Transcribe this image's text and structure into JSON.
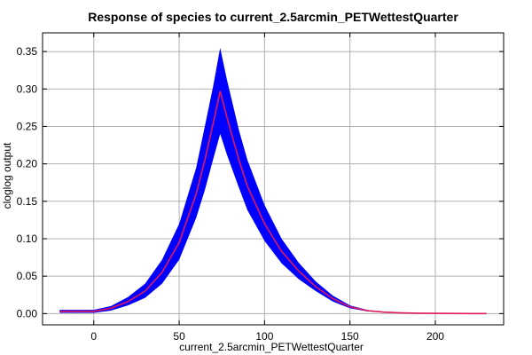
{
  "chart_data": {
    "type": "line",
    "title": "Response of species to current_2.5arcmin_PETWettestQuarter",
    "xlabel": "current_2.5arcmin_PETWettestQuarter",
    "ylabel": "cloglog output",
    "xlim": [
      -30,
      240
    ],
    "ylim": [
      -0.015,
      0.375
    ],
    "x_ticks": [
      0,
      50,
      100,
      150,
      200
    ],
    "x_tick_labels": [
      "0",
      "50",
      "100",
      "150",
      "200"
    ],
    "y_ticks": [
      0.0,
      0.05,
      0.1,
      0.15,
      0.2,
      0.25,
      0.3,
      0.35
    ],
    "y_tick_labels": [
      "0.00",
      "0.05",
      "0.10",
      "0.15",
      "0.20",
      "0.25",
      "0.30",
      "0.35"
    ],
    "grid": true,
    "series": [
      {
        "role": "mean",
        "color": "#e0175a",
        "x": [
          -20,
          -10,
          0,
          10,
          20,
          30,
          40,
          50,
          60,
          65,
          70,
          74,
          78,
          85,
          90,
          100,
          110,
          120,
          130,
          140,
          150,
          160,
          170,
          180,
          190,
          200,
          210,
          220,
          230
        ],
        "y": [
          0.003,
          0.003,
          0.003,
          0.007,
          0.016,
          0.03,
          0.055,
          0.095,
          0.16,
          0.205,
          0.255,
          0.297,
          0.262,
          0.205,
          0.17,
          0.12,
          0.083,
          0.057,
          0.036,
          0.02,
          0.009,
          0.004,
          0.002,
          0.001,
          0.0005,
          0.0003,
          0.0002,
          0.0001,
          0.0
        ]
      },
      {
        "role": "band-upper",
        "color": "#0000ff",
        "x": [
          -20,
          -10,
          0,
          10,
          20,
          30,
          40,
          50,
          60,
          65,
          70,
          74,
          78,
          85,
          90,
          100,
          110,
          120,
          130,
          140,
          150,
          160,
          170,
          180,
          190,
          200,
          210,
          220,
          230
        ],
        "y": [
          0.005,
          0.005,
          0.005,
          0.01,
          0.022,
          0.04,
          0.072,
          0.12,
          0.195,
          0.25,
          0.305,
          0.355,
          0.312,
          0.245,
          0.205,
          0.145,
          0.1,
          0.068,
          0.043,
          0.024,
          0.011,
          0.005,
          0.002,
          0.001,
          0.0006,
          0.0004,
          0.0003,
          0.0002,
          0.0001
        ]
      },
      {
        "role": "band-lower",
        "color": "#0000ff",
        "x": [
          -20,
          -10,
          0,
          10,
          20,
          30,
          40,
          50,
          60,
          65,
          70,
          74,
          78,
          85,
          90,
          100,
          110,
          120,
          130,
          140,
          150,
          160,
          170,
          180,
          190,
          200,
          210,
          220,
          230
        ],
        "y": [
          0.001,
          0.001,
          0.001,
          0.004,
          0.011,
          0.021,
          0.04,
          0.072,
          0.128,
          0.165,
          0.207,
          0.24,
          0.212,
          0.168,
          0.138,
          0.097,
          0.067,
          0.046,
          0.03,
          0.016,
          0.007,
          0.003,
          0.0015,
          0.0007,
          0.0004,
          0.0002,
          0.0001,
          0.0,
          0.0
        ]
      }
    ]
  }
}
